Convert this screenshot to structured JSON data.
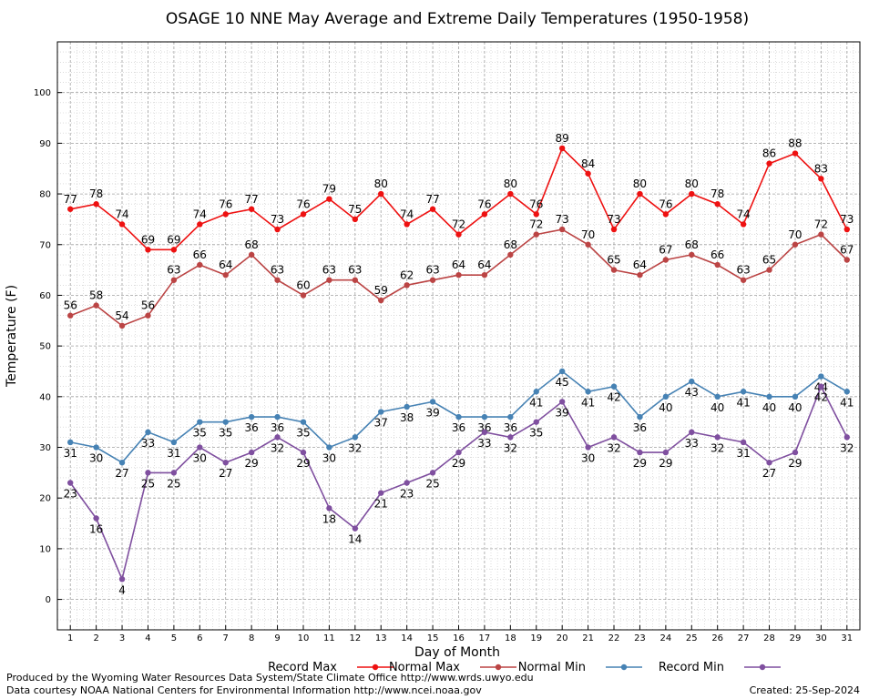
{
  "chart_data": {
    "type": "line",
    "title": "OSAGE 10 NNE May Average and Extreme Daily Temperatures (1950-1958)",
    "xlabel": "Day of Month",
    "ylabel": "Temperature (F)",
    "ylim": [
      -6,
      110
    ],
    "xlim": [
      0.5,
      31.5
    ],
    "yticks": [
      0,
      10,
      20,
      30,
      40,
      50,
      60,
      70,
      80,
      90,
      100
    ],
    "grid": true,
    "x": [
      1,
      2,
      3,
      4,
      5,
      6,
      7,
      8,
      9,
      10,
      11,
      12,
      13,
      14,
      15,
      16,
      17,
      18,
      19,
      20,
      21,
      22,
      23,
      24,
      25,
      26,
      27,
      28,
      29,
      30,
      31
    ],
    "series": [
      {
        "name": "Record Max",
        "color": "#ee1111",
        "label_pos": "above",
        "values": [
          77,
          78,
          74,
          69,
          69,
          74,
          76,
          77,
          73,
          76,
          79,
          75,
          80,
          74,
          77,
          72,
          76,
          80,
          76,
          89,
          84,
          73,
          80,
          76,
          80,
          78,
          74,
          86,
          88,
          83,
          73
        ]
      },
      {
        "name": "Normal Max",
        "color": "#bb4444",
        "label_pos": "above",
        "values": [
          56,
          58,
          54,
          56,
          63,
          66,
          64,
          68,
          63,
          60,
          63,
          63,
          59,
          62,
          63,
          64,
          64,
          68,
          72,
          73,
          70,
          65,
          64,
          67,
          68,
          66,
          63,
          65,
          70,
          72,
          67
        ]
      },
      {
        "name": "Normal Min",
        "color": "#4682b4",
        "label_pos": "below",
        "values": [
          31,
          30,
          27,
          33,
          31,
          35,
          35,
          36,
          36,
          35,
          30,
          32,
          37,
          38,
          39,
          36,
          36,
          36,
          41,
          45,
          41,
          42,
          36,
          40,
          43,
          40,
          41,
          40,
          40,
          44,
          41
        ]
      },
      {
        "name": "Record Min",
        "color": "#7f4f9f",
        "label_pos": "below",
        "values": [
          23,
          16,
          4,
          25,
          25,
          30,
          27,
          29,
          32,
          29,
          18,
          14,
          21,
          23,
          25,
          29,
          33,
          32,
          35,
          39,
          30,
          32,
          29,
          29,
          33,
          32,
          31,
          27,
          29,
          42,
          32
        ]
      }
    ]
  },
  "footer": {
    "line1": "Produced by the Wyoming Water Resources Data System/State Climate Office http://www.wrds.uwyo.edu",
    "line2": "Data courtesy NOAA National Centers for Environmental Information http://www.ncei.noaa.gov",
    "created": "Created:  25-Sep-2024"
  }
}
